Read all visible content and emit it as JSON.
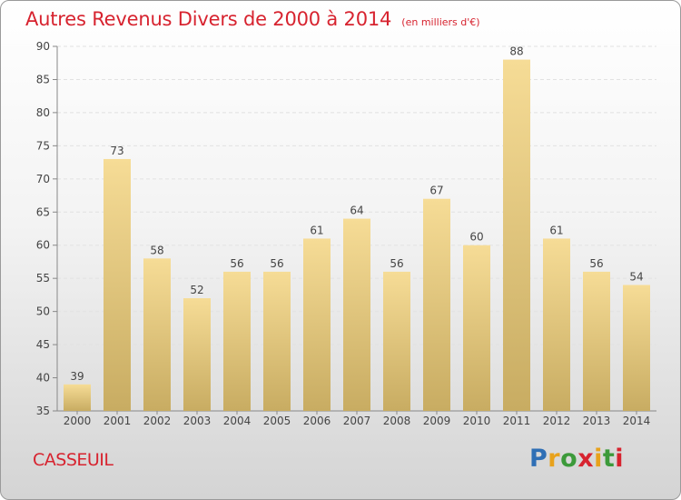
{
  "title": "Autres Revenus Divers de 2000 à 2014",
  "subtitle": "(en milliers d'€)",
  "place": "CASSEUIL",
  "logo": [
    "P",
    "r",
    "o",
    "x",
    "i",
    "t",
    "i"
  ],
  "colors": {
    "title": "#d7232f",
    "bar_light": "#f6dc96",
    "bar_dark": "#c8ac62"
  },
  "chart_data": {
    "type": "bar",
    "title": "Autres Revenus Divers de 2000 à 2014",
    "subtitle": "(en milliers d'€)",
    "categories": [
      "2000",
      "2001",
      "2002",
      "2003",
      "2004",
      "2005",
      "2006",
      "2007",
      "2008",
      "2009",
      "2010",
      "2011",
      "2012",
      "2013",
      "2014"
    ],
    "values": [
      39,
      73,
      58,
      52,
      56,
      56,
      61,
      64,
      56,
      67,
      60,
      88,
      61,
      56,
      54
    ],
    "ylim": [
      35,
      90
    ],
    "yticks": [
      35,
      40,
      45,
      50,
      55,
      60,
      65,
      70,
      75,
      80,
      85,
      90
    ],
    "grid": true,
    "legend": "none"
  }
}
